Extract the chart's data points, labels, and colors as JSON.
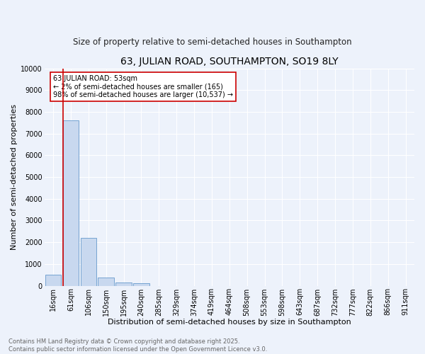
{
  "title": "63, JULIAN ROAD, SOUTHAMPTON, SO19 8LY",
  "subtitle": "Size of property relative to semi-detached houses in Southampton",
  "xlabel": "Distribution of semi-detached houses by size in Southampton",
  "ylabel": "Number of semi-detached properties",
  "categories": [
    "16sqm",
    "61sqm",
    "106sqm",
    "150sqm",
    "195sqm",
    "240sqm",
    "285sqm",
    "329sqm",
    "374sqm",
    "419sqm",
    "464sqm",
    "508sqm",
    "553sqm",
    "598sqm",
    "643sqm",
    "687sqm",
    "732sqm",
    "777sqm",
    "822sqm",
    "866sqm",
    "911sqm"
  ],
  "bar_heights": [
    500,
    7600,
    2200,
    375,
    150,
    100,
    0,
    0,
    0,
    0,
    0,
    0,
    0,
    0,
    0,
    0,
    0,
    0,
    0,
    0,
    0
  ],
  "bar_color": "#c8d8ef",
  "bar_edge_color": "#6699cc",
  "bar_edge_width": 0.6,
  "red_line_color": "#cc0000",
  "ylim": [
    0,
    10000
  ],
  "yticks": [
    0,
    1000,
    2000,
    3000,
    4000,
    5000,
    6000,
    7000,
    8000,
    9000,
    10000
  ],
  "annotation_text": "63 JULIAN ROAD: 53sqm\n← 2% of semi-detached houses are smaller (165)\n98% of semi-detached houses are larger (10,537) →",
  "annotation_box_color": "#ffffff",
  "annotation_border_color": "#cc0000",
  "footer_line1": "Contains HM Land Registry data © Crown copyright and database right 2025.",
  "footer_line2": "Contains public sector information licensed under the Open Government Licence v3.0.",
  "bg_color": "#edf2fb",
  "grid_color": "#ffffff",
  "title_fontsize": 10,
  "subtitle_fontsize": 8.5,
  "axis_label_fontsize": 8,
  "tick_fontsize": 7,
  "annotation_fontsize": 7,
  "footer_fontsize": 6,
  "footer_color": "#666666"
}
